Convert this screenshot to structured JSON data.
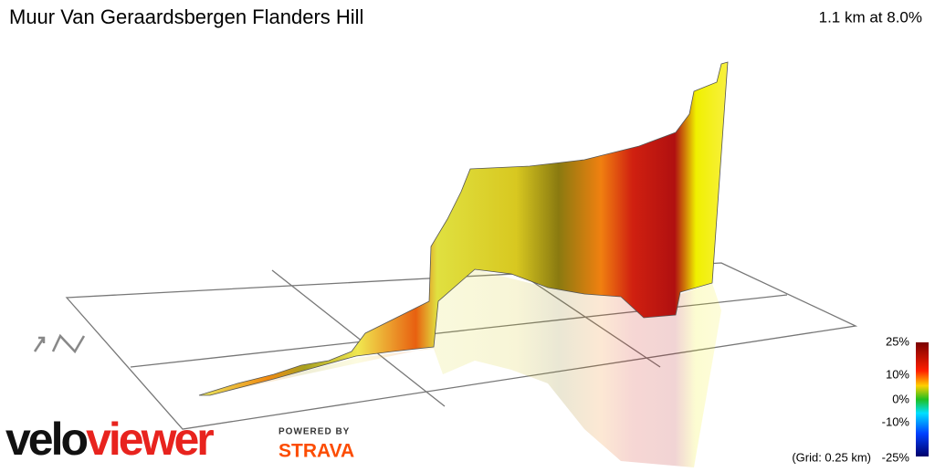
{
  "header": {
    "title": "Muur Van Geraardsbergen Flanders Hill",
    "stats": "1.1 km at 8.0%"
  },
  "legend": {
    "labels": [
      "25%",
      "10%",
      "0%",
      "-10%",
      "-25%"
    ],
    "grid_note": "(Grid: 0.25 km)"
  },
  "branding": {
    "logo_left": "velo",
    "logo_right": "viewer",
    "powered_by": "POWERED BY",
    "partner": "STRAVA"
  }
}
